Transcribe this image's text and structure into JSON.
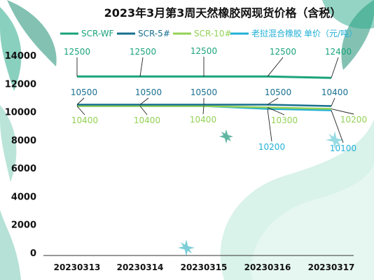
{
  "colors": {
    "SCR_WF": "#1aa37a",
    "SCR_5": "#176f8e",
    "SCR_10": "#93d154",
    "blend": "#22b0d6",
    "axis": "#111111"
  },
  "chart_data": {
    "type": "line",
    "title": "2023年3月第3周天然橡胶网现货价格（含税）",
    "categories": [
      "20230313",
      "20230314",
      "20230315",
      "20230316",
      "20230317"
    ],
    "ylim": [
      0,
      14000
    ],
    "yticks": [
      "0",
      "2000",
      "4000",
      "6000",
      "8000",
      "10000",
      "12000",
      "14000"
    ],
    "legend_position": "top",
    "legend_unit": "单价（元/吨）",
    "grid": false,
    "series": [
      {
        "name": "SCR-WF",
        "values": [
          12500,
          12500,
          12500,
          12500,
          12400
        ],
        "labels": [
          "12500",
          "12500",
          "12500",
          "12500",
          "12400"
        ]
      },
      {
        "name": "SCR-5#",
        "values": [
          10500,
          10500,
          10500,
          10500,
          10400
        ],
        "labels": [
          "10500",
          "10500",
          "10500",
          "10500",
          "10400"
        ]
      },
      {
        "name": "SCR-10#",
        "values": [
          10400,
          10400,
          10400,
          10300,
          10200
        ],
        "labels": [
          "10400",
          "10400",
          "10400",
          "10300",
          "10200"
        ]
      },
      {
        "name": "老挝混合橡胶",
        "values": [
          10400,
          10400,
          10400,
          10200,
          10100
        ],
        "labels": [
          "",
          "",
          "",
          "10200",
          "10100"
        ]
      }
    ]
  }
}
